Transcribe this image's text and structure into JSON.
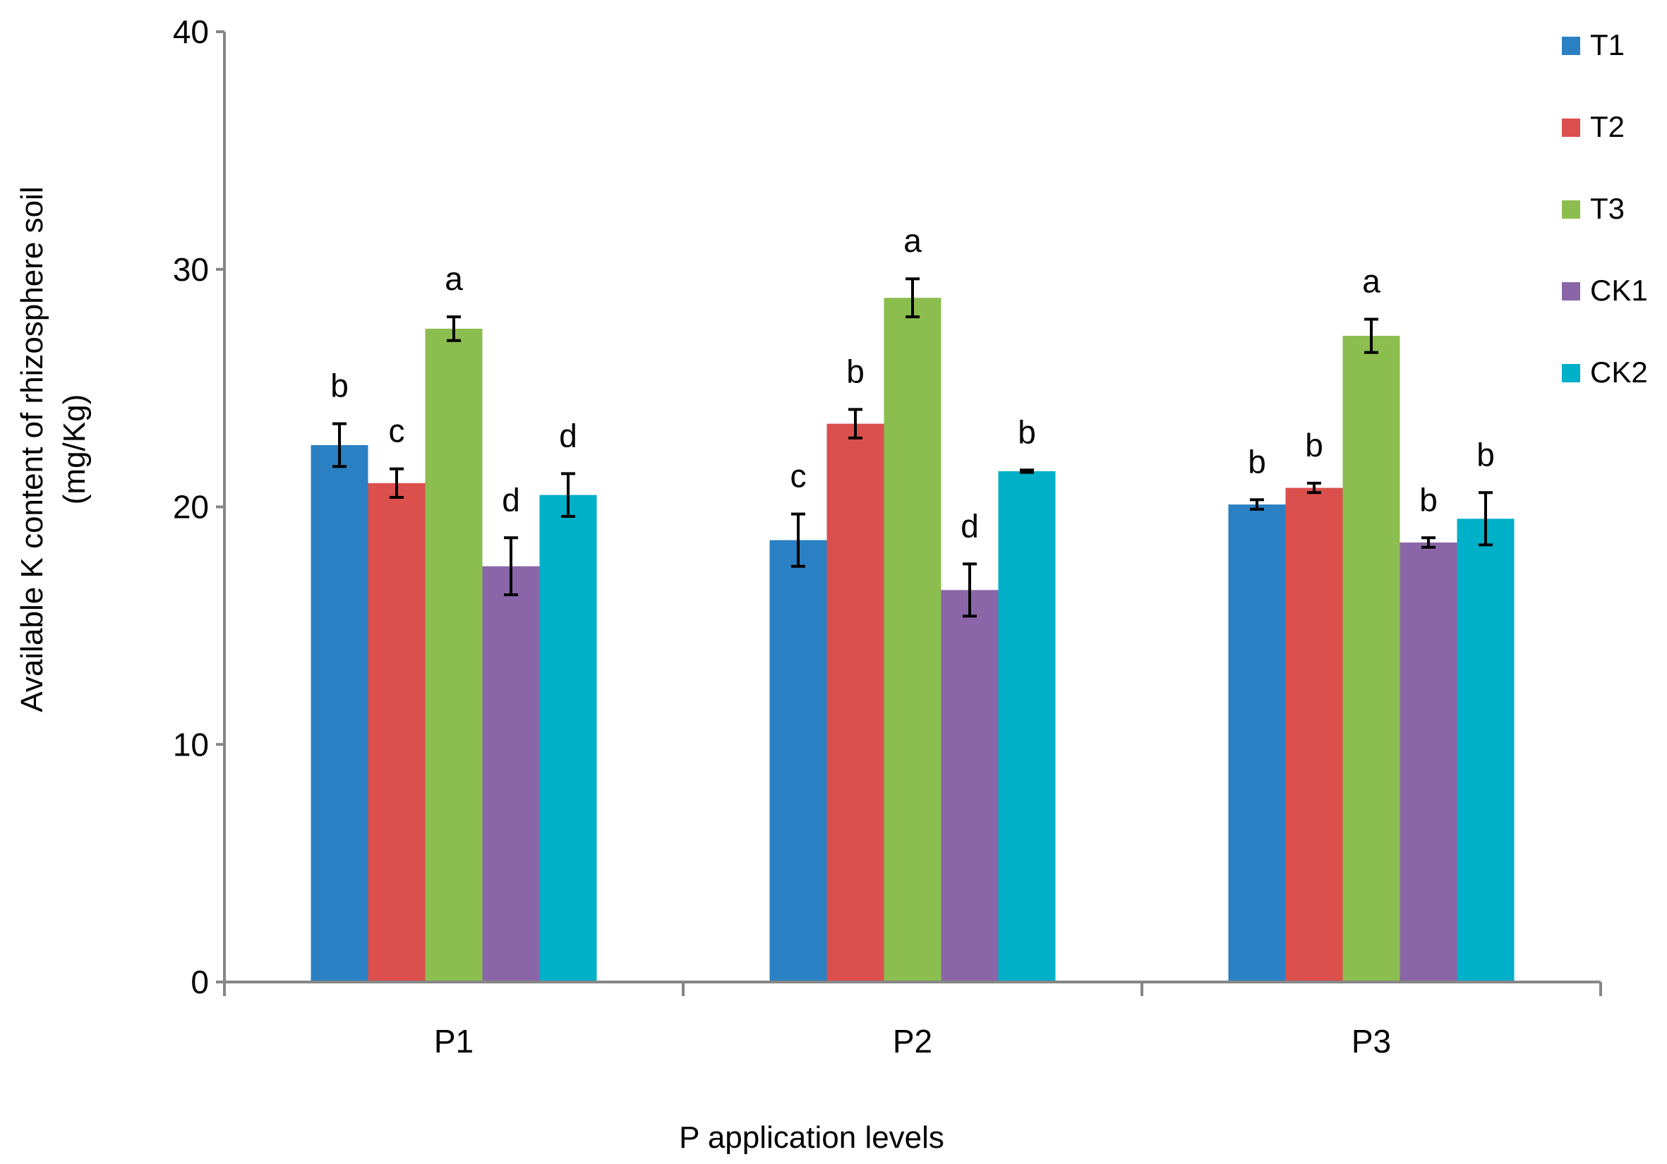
{
  "chart_data": {
    "type": "bar",
    "title": "",
    "xlabel": "P application levels",
    "ylabel_line1": "Available K content of rhizosphere soil",
    "ylabel_line2": "(mg/Kg)",
    "ylim": [
      0,
      40
    ],
    "yticks": [
      0,
      10,
      20,
      30,
      40
    ],
    "grid": false,
    "legend_position": "right",
    "categories": [
      "P1",
      "P2",
      "P3"
    ],
    "series": [
      {
        "name": "T1",
        "color": "#2A80C2",
        "values": [
          22.6,
          18.6,
          20.1
        ],
        "errors": [
          0.9,
          1.1,
          0.2
        ],
        "letters": [
          "b",
          "c",
          "b"
        ]
      },
      {
        "name": "T2",
        "color": "#DB504D",
        "values": [
          21.0,
          23.5,
          20.8
        ],
        "errors": [
          0.6,
          0.6,
          0.2
        ],
        "letters": [
          "c",
          "b",
          "b"
        ]
      },
      {
        "name": "T3",
        "color": "#8CBD4F",
        "values": [
          27.5,
          28.8,
          27.2
        ],
        "errors": [
          0.5,
          0.8,
          0.7
        ],
        "letters": [
          "a",
          "a",
          "a"
        ]
      },
      {
        "name": "CK1",
        "color": "#8A66A8",
        "values": [
          17.5,
          16.5,
          18.5
        ],
        "errors": [
          1.2,
          1.1,
          0.2
        ],
        "letters": [
          "d",
          "d",
          "b"
        ]
      },
      {
        "name": "CK2",
        "color": "#00AFC8",
        "values": [
          20.5,
          21.5,
          19.5
        ],
        "errors": [
          0.9,
          0.05,
          1.1
        ],
        "letters": [
          "d",
          "b",
          "b"
        ]
      }
    ]
  }
}
